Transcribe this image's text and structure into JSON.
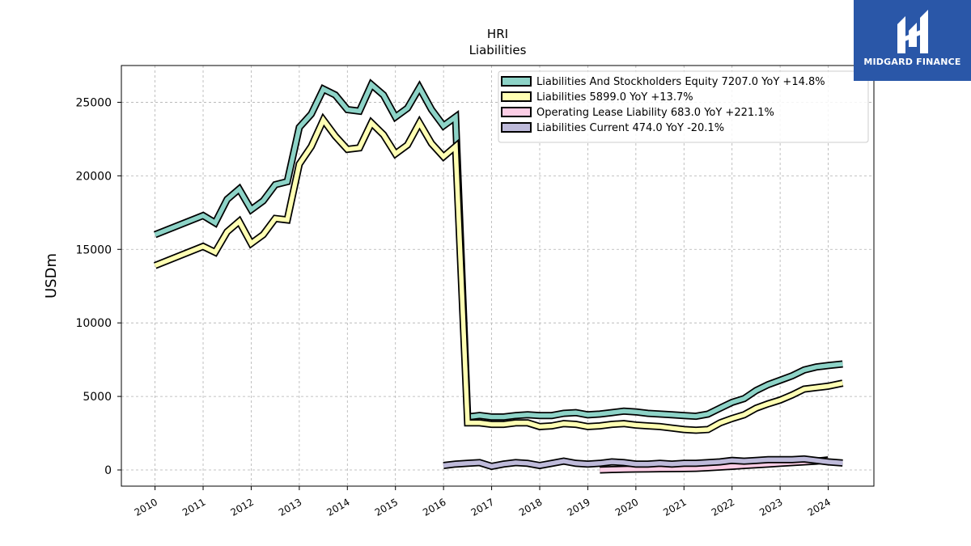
{
  "brand": {
    "name": "MIDGARD FINANCE",
    "logo_icon": "midgard-logo-icon",
    "color": "#2a57a8"
  },
  "chart_data": {
    "type": "line",
    "title": "HRI",
    "subtitle": "Liabilities",
    "ylabel": "USDm",
    "xlabel": "",
    "ylim": [
      -1100,
      27500
    ],
    "xlim": [
      2009.3,
      2024.95
    ],
    "yticks": [
      0,
      5000,
      10000,
      15000,
      20000,
      25000
    ],
    "xticks": [
      "2010",
      "2011",
      "2012",
      "2013",
      "2014",
      "2015",
      "2016",
      "2017",
      "2018",
      "2019",
      "2020",
      "2021",
      "2022",
      "2023",
      "2024"
    ],
    "grid": true,
    "legend_position": "top-right",
    "series": [
      {
        "name": "Liabilities And Stockholders Equity",
        "legend": "Liabilities And Stockholders Equity  7207.0 YoY +14.8%",
        "color": "#8dd3c7",
        "x": [
          2010.0,
          2011.0,
          2011.25,
          2011.5,
          2011.75,
          2012.0,
          2012.25,
          2012.5,
          2012.75,
          2013.0,
          2013.25,
          2013.5,
          2013.75,
          2014.0,
          2014.25,
          2014.5,
          2014.75,
          2015.0,
          2015.25,
          2015.5,
          2015.75,
          2016.0,
          2016.25,
          2016.5,
          2016.75,
          2017.0,
          2017.25,
          2017.5,
          2017.75,
          2018.0,
          2018.25,
          2018.5,
          2018.75,
          2019.0,
          2019.25,
          2019.5,
          2019.75,
          2020.0,
          2020.25,
          2020.5,
          2020.75,
          2021.0,
          2021.25,
          2021.5,
          2021.75,
          2022.0,
          2022.25,
          2022.5,
          2022.75,
          2023.0,
          2023.25,
          2023.5,
          2023.75,
          2024.0,
          2024.3
        ],
        "y": [
          16000,
          17300,
          16800,
          18400,
          19100,
          17700,
          18300,
          19400,
          19600,
          23300,
          24200,
          25900,
          25500,
          24500,
          24400,
          26200,
          25500,
          24000,
          24600,
          26000,
          24500,
          23400,
          24000,
          3600,
          3700,
          3600,
          3600,
          3700,
          3750,
          3700,
          3700,
          3850,
          3900,
          3750,
          3800,
          3900,
          4000,
          3950,
          3850,
          3800,
          3750,
          3700,
          3650,
          3800,
          4200,
          4600,
          4850,
          5400,
          5800,
          6100,
          6400,
          6800,
          7000,
          7100,
          7207
        ]
      },
      {
        "name": "Liabilities",
        "legend": "Liabilities  5899.0 YoY +13.7%",
        "color": "#ffffb3",
        "x": [
          2010.0,
          2011.0,
          2011.25,
          2011.5,
          2011.75,
          2012.0,
          2012.25,
          2012.5,
          2012.75,
          2013.0,
          2013.25,
          2013.5,
          2013.75,
          2014.0,
          2014.25,
          2014.5,
          2014.75,
          2015.0,
          2015.25,
          2015.5,
          2015.75,
          2016.0,
          2016.25,
          2016.5,
          2016.75,
          2017.0,
          2017.25,
          2017.5,
          2017.75,
          2018.0,
          2018.25,
          2018.5,
          2018.75,
          2019.0,
          2019.25,
          2019.5,
          2019.75,
          2020.0,
          2020.25,
          2020.5,
          2020.75,
          2021.0,
          2021.25,
          2021.5,
          2021.75,
          2022.0,
          2022.25,
          2022.5,
          2022.75,
          2023.0,
          2023.25,
          2023.5,
          2023.75,
          2024.0,
          2024.3
        ],
        "y": [
          13900,
          15200,
          14800,
          16200,
          16900,
          15400,
          16000,
          17100,
          17000,
          20800,
          22000,
          23800,
          22700,
          21800,
          21900,
          23600,
          22800,
          21500,
          22100,
          23600,
          22200,
          21300,
          22000,
          3200,
          3200,
          3100,
          3100,
          3200,
          3200,
          2950,
          3000,
          3150,
          3100,
          2950,
          3000,
          3100,
          3150,
          3050,
          3000,
          2950,
          2850,
          2750,
          2700,
          2750,
          3200,
          3500,
          3750,
          4200,
          4500,
          4750,
          5100,
          5500,
          5600,
          5700,
          5899
        ]
      },
      {
        "name": "Operating Lease Liability",
        "legend": "Operating Lease Liability  683.0 YoY +221.1%",
        "color": "#fccde5",
        "x": [
          2019.25,
          2019.5,
          2019.75,
          2020.0,
          2020.25,
          2020.5,
          2020.75,
          2021.0,
          2021.25,
          2021.5,
          2021.75,
          2022.0,
          2022.25,
          2022.5,
          2022.75,
          2023.0,
          2023.25,
          2023.5,
          2023.75,
          2024.0
        ],
        "y": [
          0,
          30,
          50,
          60,
          70,
          80,
          90,
          100,
          110,
          150,
          200,
          250,
          300,
          350,
          400,
          450,
          500,
          550,
          600,
          683
        ]
      },
      {
        "name": "Liabilities Current",
        "legend": "Liabilities Current  474.0 YoY -20.1%",
        "color": "#bebada",
        "x": [
          2016.0,
          2016.25,
          2016.5,
          2016.75,
          2017.0,
          2017.25,
          2017.5,
          2017.75,
          2018.0,
          2018.25,
          2018.5,
          2018.75,
          2019.0,
          2019.25,
          2019.5,
          2019.75,
          2020.0,
          2020.25,
          2020.5,
          2020.75,
          2021.0,
          2021.25,
          2021.5,
          2021.75,
          2022.0,
          2022.25,
          2022.5,
          2022.75,
          2023.0,
          2023.25,
          2023.5,
          2023.75,
          2024.0,
          2024.3
        ],
        "y": [
          300,
          400,
          450,
          500,
          250,
          400,
          500,
          450,
          300,
          450,
          600,
          450,
          400,
          450,
          550,
          500,
          400,
          400,
          450,
          400,
          450,
          450,
          500,
          550,
          650,
          600,
          650,
          700,
          700,
          700,
          750,
          650,
          550,
          474
        ]
      }
    ]
  }
}
